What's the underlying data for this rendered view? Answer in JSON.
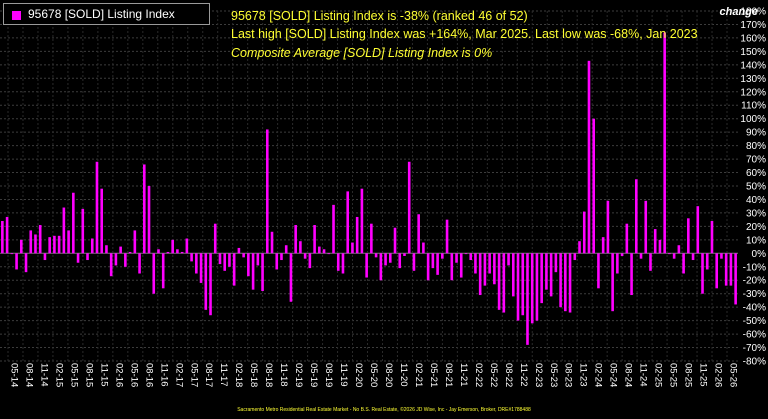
{
  "legend": {
    "label": "95678 [SOLD] Listing Index",
    "color": "#ff00ff"
  },
  "info": {
    "line1": "95678 [SOLD] Listing Index is -38% (ranked 46 of 52)",
    "line2": "Last high [SOLD] Listing Index was +164%, Mar 2025. Last low was -68%, Jan 2023",
    "line3": "Composite Average [SOLD] Listing Index is 0%"
  },
  "axis": {
    "unit_label": "change"
  },
  "footer": "Sacramento Metro Residential Real Estate Market - No B.S. Real Estate, ©2026 JD Wise, Inc - Jay Emerson, Broker, DRE#1788488",
  "colors": {
    "background": "#000000",
    "bars": "#ff00ff",
    "grid": "#555555",
    "text": "#ffffff",
    "info_text": "#ffff33"
  },
  "chart_data": {
    "type": "bar",
    "ylim": [
      -80,
      180
    ],
    "yticks": [
      180,
      170,
      160,
      150,
      140,
      130,
      120,
      110,
      100,
      90,
      80,
      70,
      60,
      50,
      40,
      30,
      20,
      10,
      0,
      -10,
      -20,
      -30,
      -40,
      -50,
      -60,
      -70,
      -80
    ],
    "ytick_format": "percent",
    "grid": true,
    "legend_position": "top-left",
    "x_tick_labels": [
      "05-14",
      "08-14",
      "11-14",
      "02-15",
      "05-15",
      "08-15",
      "11-15",
      "02-16",
      "05-16",
      "08-16",
      "11-16",
      "02-17",
      "05-17",
      "08-17",
      "11-17",
      "02-18",
      "05-18",
      "08-18",
      "11-18",
      "02-19",
      "05-19",
      "08-19",
      "11-19",
      "02-20",
      "05-20",
      "08-20",
      "11-20",
      "02-21",
      "05-21",
      "08-21",
      "11-21",
      "02-22",
      "05-22",
      "08-22",
      "11-22",
      "02-23",
      "05-23",
      "08-23",
      "11-23",
      "02-24",
      "05-24",
      "08-24",
      "11-24",
      "02-25",
      "05-25",
      "08-25",
      "11-25",
      "02-26",
      "05-26"
    ],
    "series": [
      {
        "name": "95678 [SOLD] Listing Index",
        "values": [
          24,
          27,
          0,
          -12,
          10,
          -14,
          17,
          14,
          21,
          -5,
          12,
          13,
          13,
          34,
          17,
          45,
          -7,
          33,
          -5,
          11,
          68,
          48,
          6,
          -17,
          -9,
          5,
          -10,
          1,
          17,
          -15,
          66,
          50,
          -30,
          3,
          -26,
          1,
          10,
          3,
          1,
          11,
          -6,
          -15,
          -22,
          -42,
          -46,
          22,
          -8,
          -13,
          -10,
          -24,
          4,
          -3,
          -17,
          -27,
          -9,
          -28,
          92,
          16,
          -12,
          -5,
          6,
          -36,
          21,
          9,
          -4,
          -11,
          21,
          5,
          3,
          0,
          36,
          -13,
          -15,
          46,
          8,
          27,
          48,
          -18,
          22,
          -3,
          -20,
          -9,
          -7,
          19,
          -11,
          -2,
          68,
          -13,
          29,
          8,
          -20,
          -11,
          -16,
          -4,
          25,
          -20,
          -7,
          -18,
          0,
          -5,
          -15,
          -31,
          -24,
          -15,
          -23,
          -42,
          -44,
          -9,
          -32,
          -50,
          -46,
          -68,
          -52,
          -50,
          -37,
          -27,
          -32,
          -14,
          -40,
          -43,
          -44,
          -5,
          9,
          31,
          143,
          100,
          -26,
          12,
          39,
          -43,
          -15,
          -2,
          22,
          -31,
          55,
          -4,
          39,
          -13,
          18,
          10,
          164,
          0,
          -4,
          6,
          -15,
          26,
          -5,
          35,
          -30,
          -12,
          24,
          -26,
          -4,
          -24,
          -24,
          -38
        ]
      }
    ]
  }
}
